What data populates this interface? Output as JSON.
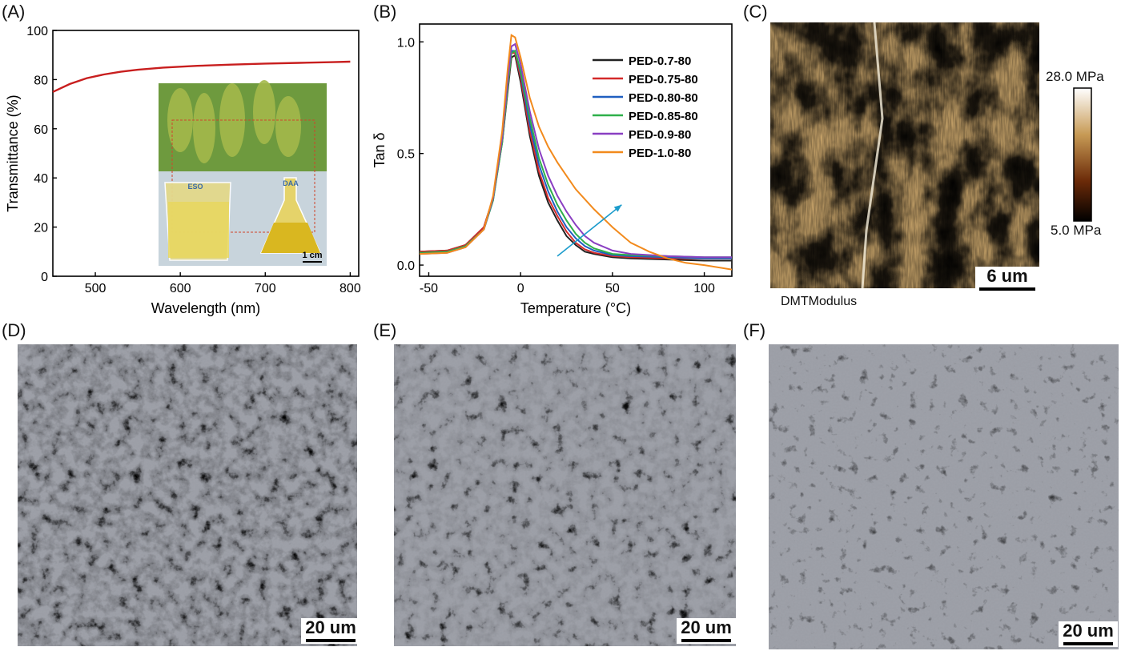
{
  "panels": {
    "A": "(A)",
    "B": "(B)",
    "C": "(C)",
    "D": "(D)",
    "E": "(E)",
    "F": "(F)"
  },
  "chart_data": [
    {
      "type": "line",
      "panel": "(A)",
      "xlabel": "Wavelength (nm)",
      "ylabel": "Transmittance (%)",
      "xlim": [
        450,
        810
      ],
      "ylim": [
        0,
        100
      ],
      "xticks": [
        500,
        600,
        700,
        800
      ],
      "yticks": [
        0,
        20,
        40,
        60,
        80,
        100
      ],
      "series": [
        {
          "color": "#c81e1e",
          "x": [
            450,
            470,
            490,
            510,
            530,
            550,
            580,
            620,
            660,
            700,
            740,
            780,
            800
          ],
          "y": [
            75,
            78.2,
            80.6,
            82.1,
            83.2,
            84.0,
            84.9,
            85.6,
            86.1,
            86.5,
            86.8,
            87.1,
            87.3
          ]
        }
      ],
      "inset_labels": {
        "left_beaker": "ESO",
        "right_flask": "DAA",
        "scale": "1 cm"
      }
    },
    {
      "type": "line",
      "panel": "(B)",
      "xlabel": "Temperature (°C)",
      "ylabel": "Tan δ",
      "xlim": [
        -55,
        115
      ],
      "ylim": [
        -0.05,
        1.08
      ],
      "xticks": [
        -50,
        0,
        50,
        100
      ],
      "yticks": [
        0.0,
        0.5,
        1.0
      ],
      "ytick_labels": [
        "0.0",
        "0.5",
        "1.0"
      ],
      "legend_position": "top-right",
      "series": [
        {
          "name": "PED-0.7-80",
          "color": "#222222",
          "x": [
            -55,
            -40,
            -30,
            -20,
            -15,
            -10,
            -7,
            -5,
            -3,
            0,
            5,
            10,
            15,
            20,
            25,
            30,
            35,
            40,
            50,
            60,
            80,
            100,
            115
          ],
          "y": [
            0.06,
            0.065,
            0.09,
            0.17,
            0.3,
            0.55,
            0.78,
            0.93,
            0.94,
            0.82,
            0.58,
            0.4,
            0.28,
            0.2,
            0.13,
            0.09,
            0.06,
            0.05,
            0.035,
            0.03,
            0.025,
            0.02,
            0.02
          ]
        },
        {
          "name": "PED-0.75-80",
          "color": "#d42a2a",
          "x": [
            -55,
            -40,
            -30,
            -20,
            -15,
            -10,
            -7,
            -5,
            -3,
            0,
            5,
            10,
            15,
            20,
            25,
            30,
            35,
            40,
            50,
            60,
            80,
            100,
            115
          ],
          "y": [
            0.06,
            0.065,
            0.09,
            0.17,
            0.3,
            0.56,
            0.79,
            0.95,
            0.95,
            0.84,
            0.6,
            0.42,
            0.3,
            0.22,
            0.15,
            0.1,
            0.07,
            0.055,
            0.04,
            0.035,
            0.03,
            0.03,
            0.03
          ]
        },
        {
          "name": "PED-0.80-80",
          "color": "#1f5fc0",
          "x": [
            -55,
            -40,
            -30,
            -20,
            -15,
            -10,
            -7,
            -5,
            -3,
            0,
            5,
            10,
            15,
            20,
            25,
            30,
            35,
            40,
            50,
            60,
            80,
            100,
            115
          ],
          "y": [
            0.055,
            0.06,
            0.085,
            0.16,
            0.29,
            0.56,
            0.8,
            0.96,
            0.96,
            0.86,
            0.63,
            0.45,
            0.33,
            0.24,
            0.17,
            0.12,
            0.085,
            0.065,
            0.045,
            0.04,
            0.035,
            0.03,
            0.03
          ]
        },
        {
          "name": "PED-0.85-80",
          "color": "#2fb04a",
          "x": [
            -55,
            -40,
            -30,
            -20,
            -15,
            -10,
            -7,
            -5,
            -3,
            0,
            5,
            10,
            15,
            20,
            25,
            30,
            35,
            40,
            50,
            60,
            80,
            100,
            115
          ],
          "y": [
            0.055,
            0.06,
            0.085,
            0.16,
            0.29,
            0.55,
            0.8,
            0.95,
            0.96,
            0.87,
            0.66,
            0.48,
            0.36,
            0.27,
            0.2,
            0.14,
            0.1,
            0.075,
            0.05,
            0.045,
            0.04,
            0.035,
            0.035
          ]
        },
        {
          "name": "PED-0.9-80",
          "color": "#8a3fc2",
          "x": [
            -55,
            -40,
            -30,
            -20,
            -15,
            -10,
            -7,
            -5,
            -3,
            0,
            5,
            10,
            15,
            20,
            25,
            30,
            35,
            40,
            50,
            60,
            80,
            100,
            115
          ],
          "y": [
            0.05,
            0.055,
            0.08,
            0.16,
            0.3,
            0.57,
            0.83,
            0.98,
            0.99,
            0.9,
            0.69,
            0.52,
            0.4,
            0.31,
            0.24,
            0.18,
            0.13,
            0.1,
            0.065,
            0.05,
            0.04,
            0.035,
            0.035
          ]
        },
        {
          "name": "PED-1.0-80",
          "color": "#f28a1c",
          "x": [
            -55,
            -40,
            -30,
            -20,
            -15,
            -10,
            -7,
            -5,
            -3,
            0,
            5,
            10,
            15,
            20,
            25,
            30,
            40,
            50,
            60,
            70,
            80,
            90,
            100,
            115
          ],
          "y": [
            0.05,
            0.055,
            0.08,
            0.16,
            0.31,
            0.6,
            0.88,
            1.03,
            1.02,
            0.93,
            0.75,
            0.62,
            0.53,
            0.46,
            0.4,
            0.34,
            0.25,
            0.17,
            0.1,
            0.06,
            0.03,
            0.01,
            0.0,
            -0.02
          ]
        }
      ],
      "arrow": {
        "from": [
          20,
          0.04
        ],
        "to": [
          55,
          0.27
        ],
        "color": "#1c9ccc"
      }
    }
  ],
  "afm": {
    "colorbar_max": "28.0 MPa",
    "colorbar_min": "5.0 MPa",
    "caption": "DMTModulus",
    "scalebar": "6 um"
  },
  "sem": {
    "D_scalebar": "20 um",
    "E_scalebar": "20 um",
    "F_scalebar": "20 um"
  },
  "colors": {
    "afm_light": "#f5ecd6",
    "afm_mid": "#b07a2a",
    "afm_dark": "#2b0d04",
    "sem_gray": "#8c8f97",
    "sem_yellow": "#f1df5c"
  }
}
